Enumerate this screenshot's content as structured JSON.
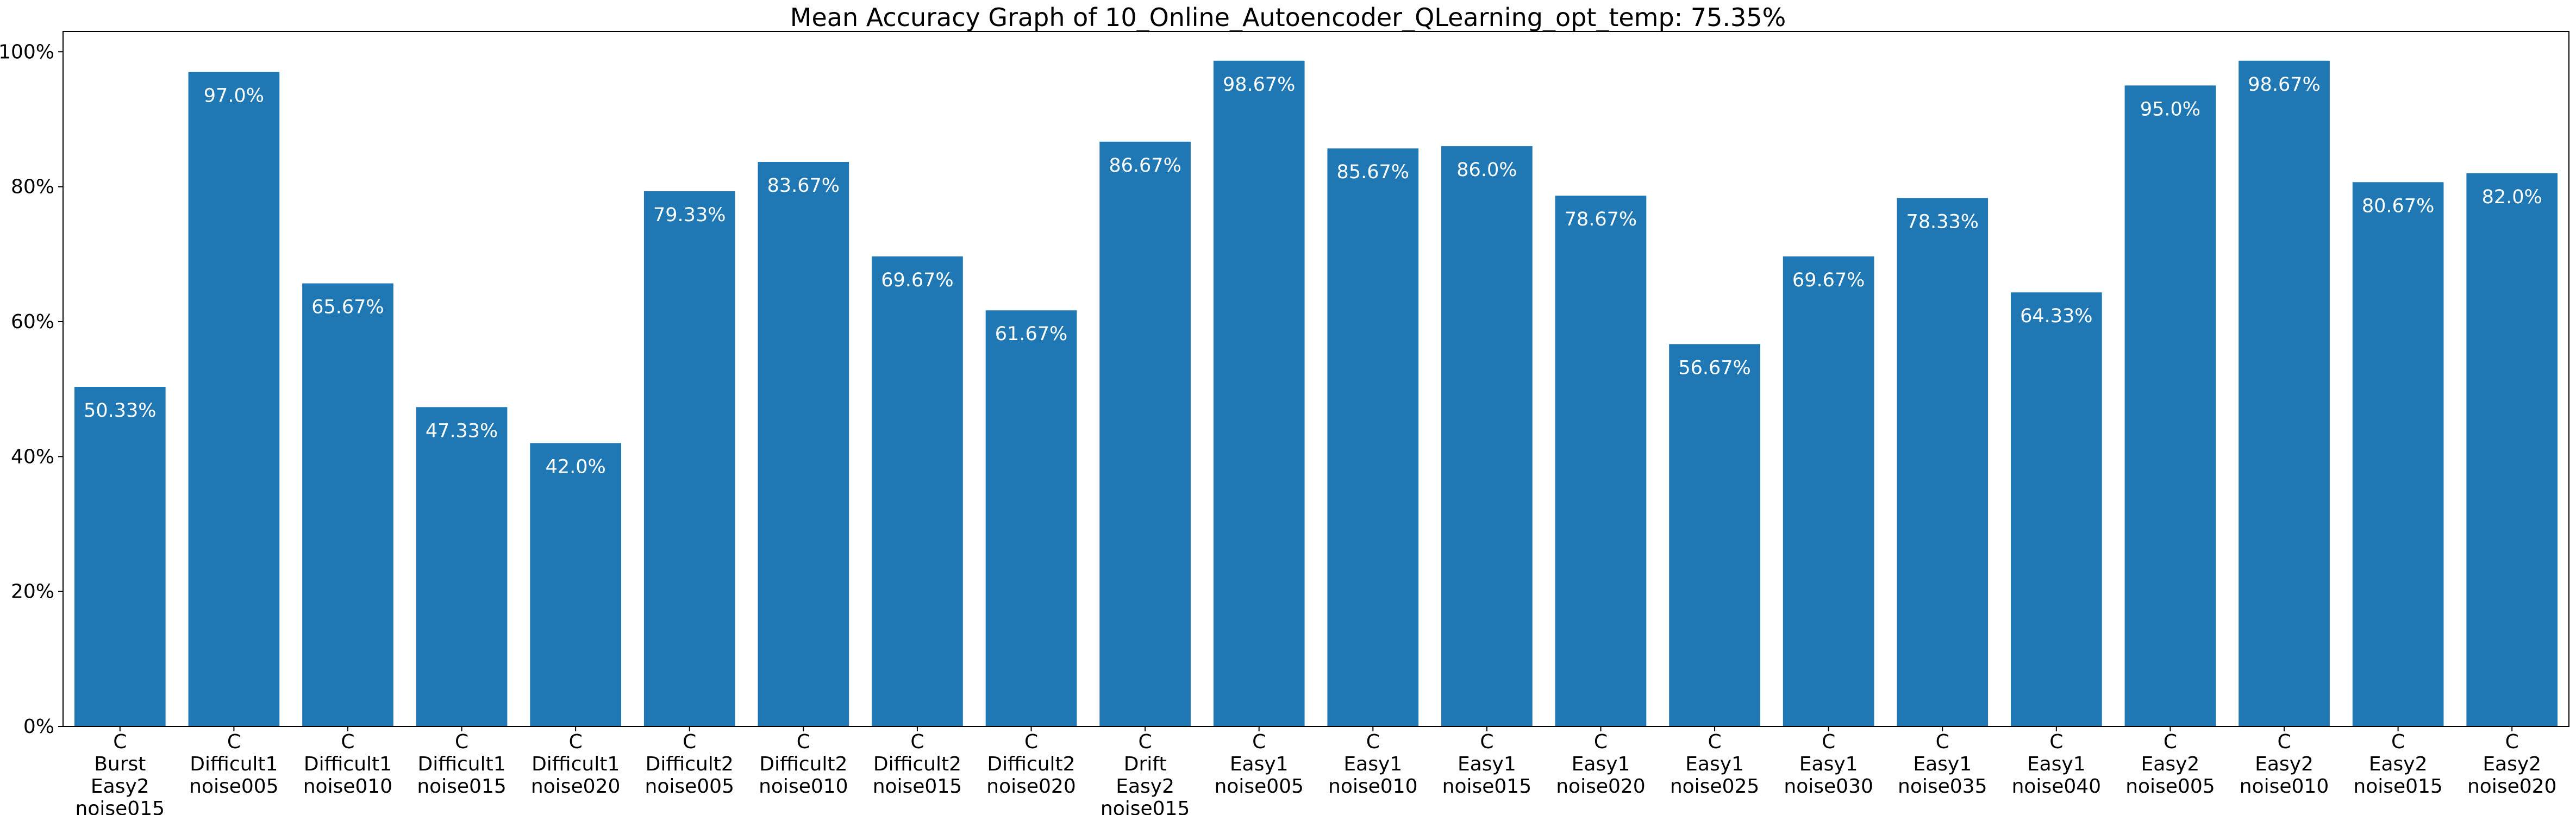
{
  "chart_data": {
    "type": "bar",
    "title": "Mean Accuracy Graph of 10_Online_Autoencoder_QLearning_opt_temp: 75.35%",
    "xlabel": "",
    "ylabel": "",
    "ylim": [
      0,
      103
    ],
    "yticks": [
      0,
      20,
      40,
      60,
      80,
      100
    ],
    "ytick_labels": [
      "0%",
      "20%",
      "40%",
      "60%",
      "80%",
      "100%"
    ],
    "grid": false,
    "bar_color": "#1f77b4",
    "label_color": "#ffffff",
    "categories": [
      "C\nBurst\nEasy2\nnoise015",
      "C\nDifficult1\nnoise005",
      "C\nDifficult1\nnoise010",
      "C\nDifficult1\nnoise015",
      "C\nDifficult1\nnoise020",
      "C\nDifficult2\nnoise005",
      "C\nDifficult2\nnoise010",
      "C\nDifficult2\nnoise015",
      "C\nDifficult2\nnoise020",
      "C\nDrift\nEasy2\nnoise015",
      "C\nEasy1\nnoise005",
      "C\nEasy1\nnoise010",
      "C\nEasy1\nnoise015",
      "C\nEasy1\nnoise020",
      "C\nEasy1\nnoise025",
      "C\nEasy1\nnoise030",
      "C\nEasy1\nnoise035",
      "C\nEasy1\nnoise040",
      "C\nEasy2\nnoise005",
      "C\nEasy2\nnoise010",
      "C\nEasy2\nnoise015",
      "C\nEasy2\nnoise020"
    ],
    "values": [
      50.33,
      97.0,
      65.67,
      47.33,
      42.0,
      79.33,
      83.67,
      69.67,
      61.67,
      86.67,
      98.67,
      85.67,
      86.0,
      78.67,
      56.67,
      69.67,
      78.33,
      64.33,
      95.0,
      98.67,
      80.67,
      82.0
    ],
    "data_labels": [
      "50.33%",
      "97.0%",
      "65.67%",
      "47.33%",
      "42.0%",
      "79.33%",
      "83.67%",
      "69.67%",
      "61.67%",
      "86.67%",
      "98.67%",
      "85.67%",
      "86.0%",
      "78.67%",
      "56.67%",
      "69.67%",
      "78.33%",
      "64.33%",
      "95.0%",
      "98.67%",
      "80.67%",
      "82.0%"
    ]
  }
}
